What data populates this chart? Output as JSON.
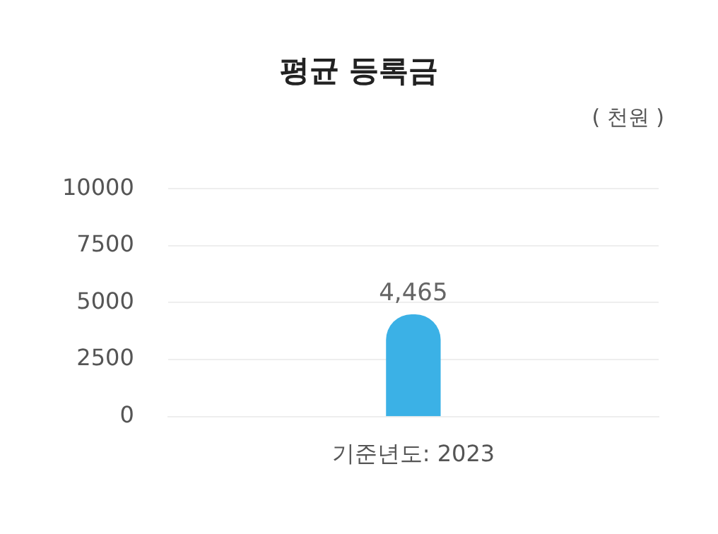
{
  "chart_data": {
    "type": "bar",
    "title": "평균 등록금",
    "ylabel": "( 천원 )",
    "categories": [
      "기준년도: 2023"
    ],
    "values": [
      4465
    ],
    "value_labels": [
      "4,465"
    ],
    "color": "#3bb1e6",
    "ylim": [
      0,
      10000
    ],
    "yticks": [
      0,
      2500,
      5000,
      7500,
      10000
    ],
    "grid": "y"
  }
}
